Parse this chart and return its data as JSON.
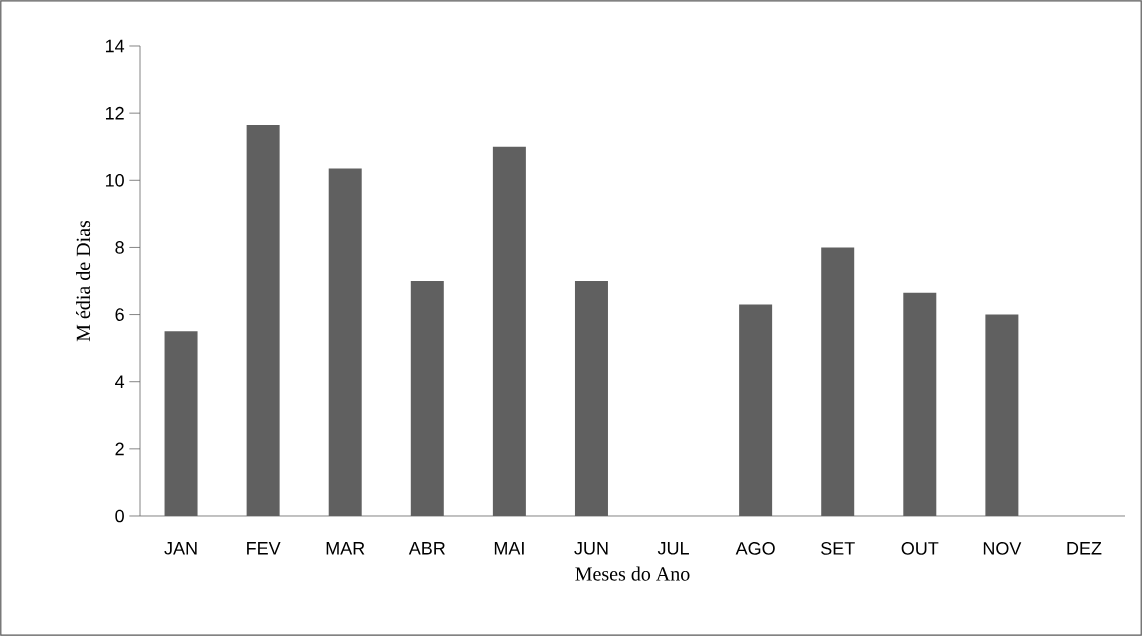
{
  "chart_data": {
    "type": "bar",
    "xlabel": "Meses do Ano",
    "ylabel": "M édia de Dias",
    "categories": [
      "JAN",
      "FEV",
      "MAR",
      "ABR",
      "MAI",
      "JUN",
      "JUL",
      "AGO",
      "SET",
      "OUT",
      "NOV",
      "DEZ"
    ],
    "values": [
      5.5,
      11.65,
      10.35,
      7,
      11,
      7,
      0,
      6.3,
      8,
      6.65,
      6,
      0
    ],
    "color": "#606060",
    "ylim": [
      0,
      14
    ],
    "yticks": [
      0,
      2,
      4,
      6,
      8,
      10,
      12,
      14
    ],
    "grid": false
  }
}
